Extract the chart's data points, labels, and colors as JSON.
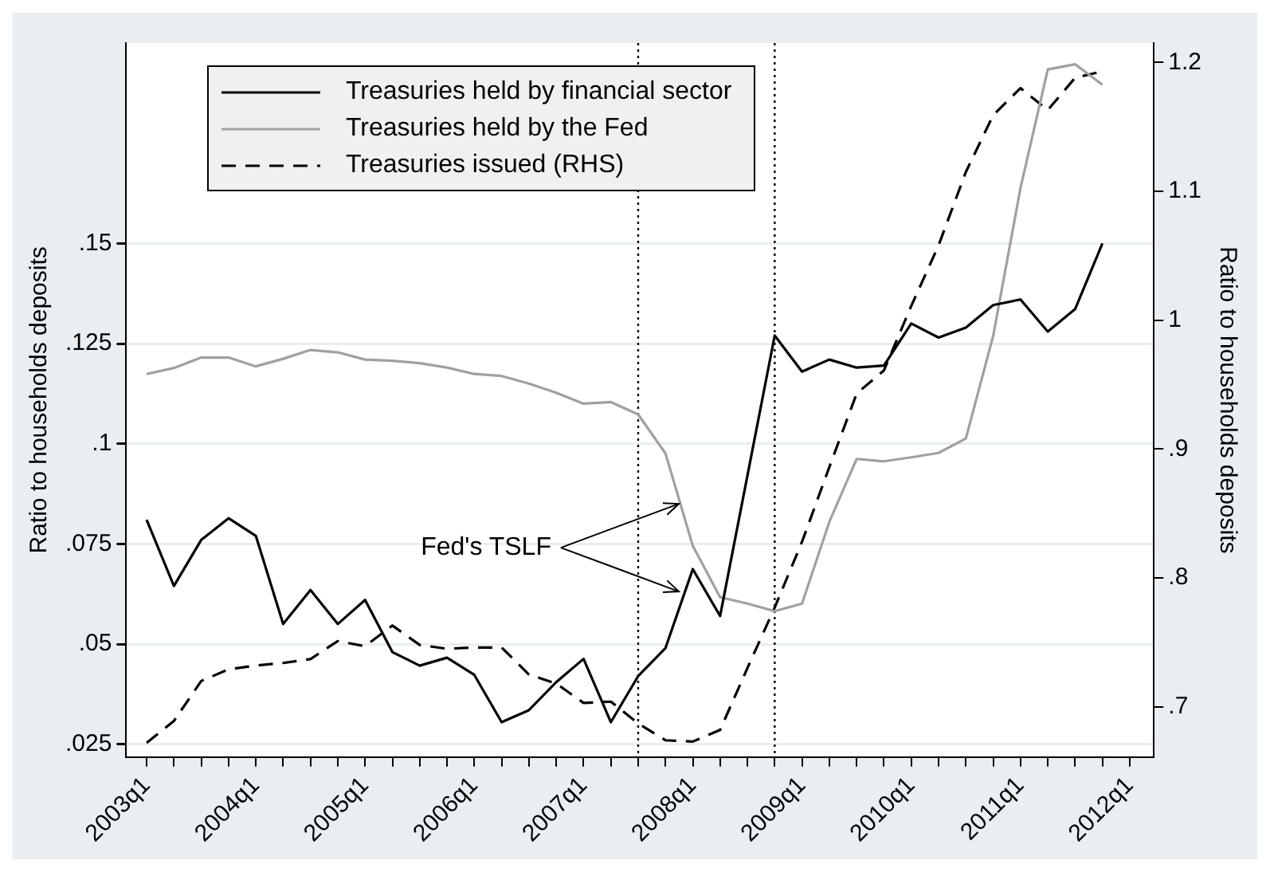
{
  "chart_data": {
    "type": "line",
    "ylabel": "Ratio to households deposits",
    "y2label": "Ratio to households deposits",
    "x": [
      "2003-01",
      "2003-04",
      "2003-07",
      "2003-10",
      "2004-01",
      "2004-04",
      "2004-07",
      "2004-10",
      "2005-01",
      "2005-04",
      "2005-07",
      "2005-10",
      "2006-01",
      "2006-04",
      "2006-07",
      "2006-10",
      "2007-01",
      "2007-04",
      "2007-07",
      "2007-10",
      "2008-01",
      "2008-04",
      "2008-07",
      "2008-10",
      "2009-01",
      "2009-04",
      "2009-07",
      "2009-10",
      "2010-01",
      "2010-04",
      "2010-07",
      "2010-10",
      "2011-01",
      "2011-04",
      "2011-07",
      "2011-10"
    ],
    "series": [
      {
        "name": "Treasuries held by financial sector",
        "color": "#000000",
        "line_style": "solid",
        "values": [
          0.081,
          0.0645,
          0.076,
          0.0814,
          0.077,
          0.055,
          0.0635,
          0.055,
          0.061,
          0.048,
          0.0446,
          0.0466,
          0.0423,
          0.0305,
          0.0335,
          0.0405,
          0.0463,
          0.0305,
          0.042,
          0.049,
          0.0687,
          0.057,
          0.092,
          0.127,
          0.118,
          0.121,
          0.119,
          0.1195,
          0.13,
          0.1265,
          0.129,
          0.1346,
          0.136,
          0.128,
          0.1336,
          0.15
        ]
      },
      {
        "name": "Treasuries held by the Fed",
        "color": "#a0a0a0",
        "line_style": "solid",
        "values": [
          0.1174,
          0.1189,
          0.1215,
          0.1215,
          0.1193,
          0.1212,
          0.1234,
          0.1228,
          0.121,
          0.1207,
          0.1201,
          0.119,
          0.1174,
          0.1169,
          0.115,
          0.1127,
          0.11,
          0.1104,
          0.1073,
          0.0976,
          0.0745,
          0.0617,
          0.0601,
          0.0582,
          0.0601,
          0.0805,
          0.0962,
          0.0956,
          0.0966,
          0.0977,
          0.1013,
          0.1269,
          0.1638,
          0.1934,
          0.1947,
          0.1896
        ]
      },
      {
        "name": "Treasuries issued (RHS)",
        "color": "#000000",
        "line_style": "dashed",
        "axis": "y2",
        "values": [
          0.672,
          0.689,
          0.72,
          0.729,
          0.732,
          0.734,
          0.737,
          0.751,
          0.747,
          0.763,
          0.748,
          0.745,
          0.746,
          0.746,
          0.725,
          0.718,
          0.703,
          0.704,
          0.687,
          0.674,
          0.673,
          0.682,
          0.73,
          0.777,
          0.828,
          0.886,
          0.943,
          0.961,
          1.011,
          1.058,
          1.115,
          1.159,
          1.18,
          1.163,
          1.188,
          1.193
        ]
      }
    ],
    "xlim": [
      "2002-10-24",
      "2012-03-21"
    ],
    "xticks": [
      {
        "value": "2003-01",
        "label": "2003q1"
      },
      {
        "value": "2003-04",
        "label": null
      },
      {
        "value": "2003-07",
        "label": null
      },
      {
        "value": "2003-10",
        "label": null
      },
      {
        "value": "2004-01",
        "label": "2004q1"
      },
      {
        "value": "2004-04",
        "label": null
      },
      {
        "value": "2004-07",
        "label": null
      },
      {
        "value": "2004-10",
        "label": null
      },
      {
        "value": "2005-01",
        "label": "2005q1"
      },
      {
        "value": "2005-04",
        "label": null
      },
      {
        "value": "2005-07",
        "label": null
      },
      {
        "value": "2005-10",
        "label": null
      },
      {
        "value": "2006-01",
        "label": "2006q1"
      },
      {
        "value": "2006-04",
        "label": null
      },
      {
        "value": "2006-07",
        "label": null
      },
      {
        "value": "2006-10",
        "label": null
      },
      {
        "value": "2007-01",
        "label": "2007q1"
      },
      {
        "value": "2007-04",
        "label": null
      },
      {
        "value": "2007-07",
        "label": null
      },
      {
        "value": "2007-10",
        "label": null
      },
      {
        "value": "2008-01",
        "label": "2008q1"
      },
      {
        "value": "2008-04",
        "label": null
      },
      {
        "value": "2008-07",
        "label": null
      },
      {
        "value": "2008-10",
        "label": null
      },
      {
        "value": "2009-01",
        "label": "2009q1"
      },
      {
        "value": "2009-04",
        "label": null
      },
      {
        "value": "2009-07",
        "label": null
      },
      {
        "value": "2009-10",
        "label": null
      },
      {
        "value": "2010-01",
        "label": "2010q1"
      },
      {
        "value": "2010-04",
        "label": null
      },
      {
        "value": "2010-07",
        "label": null
      },
      {
        "value": "2010-10",
        "label": null
      },
      {
        "value": "2011-01",
        "label": "2011q1"
      },
      {
        "value": "2011-04",
        "label": null
      },
      {
        "value": "2011-07",
        "label": null
      },
      {
        "value": "2011-10",
        "label": null
      },
      {
        "value": "2012-01",
        "label": "2012q1"
      }
    ],
    "ylim": [
      0.0218,
      0.2
    ],
    "yticks": [
      {
        "value": 0.025,
        "label": ".025"
      },
      {
        "value": 0.05,
        "label": ".05"
      },
      {
        "value": 0.075,
        "label": ".075"
      },
      {
        "value": 0.1,
        "label": ".1"
      },
      {
        "value": 0.125,
        "label": ".125"
      },
      {
        "value": 0.15,
        "label": ".15"
      }
    ],
    "y2lim": [
      0.661,
      1.215
    ],
    "y2ticks": [
      {
        "value": 0.7,
        "label": ".7"
      },
      {
        "value": 0.8,
        "label": ".8"
      },
      {
        "value": 0.9,
        "label": ".9"
      },
      {
        "value": 1,
        "label": "1"
      },
      {
        "value": 1.1,
        "label": "1.1"
      },
      {
        "value": 1.2,
        "label": "1.2"
      }
    ],
    "ref_lines": [
      {
        "axis": "x",
        "value": "2007-07",
        "line_style": "dotted",
        "color": "#000000"
      },
      {
        "axis": "x",
        "value": "2008-10",
        "line_style": "dotted",
        "color": "#000000"
      }
    ],
    "annotations": [
      {
        "text": "Fed's TSLF",
        "x": "2007-11-15",
        "y": 0.085
      }
    ],
    "grid": "y",
    "legend": "top left",
    "marker": "none"
  }
}
